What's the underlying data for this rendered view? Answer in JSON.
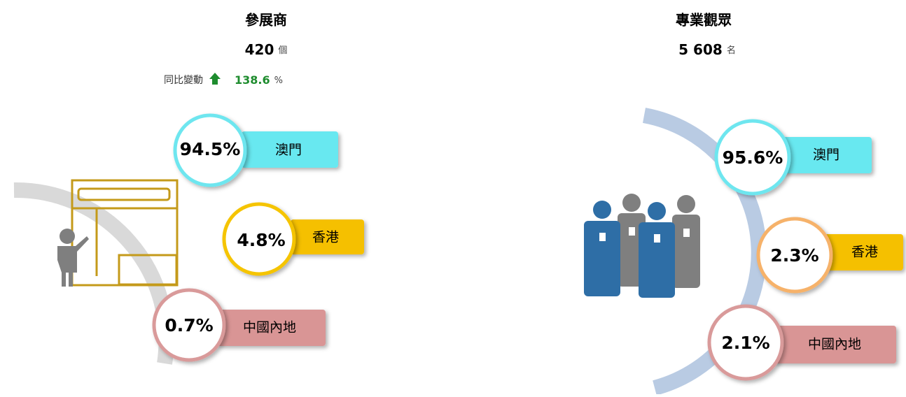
{
  "panels": [
    {
      "title": "參展商",
      "total": "420",
      "unit": "個",
      "change_label": "同比變動",
      "change": "138.6",
      "change_unit": "%",
      "items": [
        {
          "value": "94.5%",
          "label": "澳門"
        },
        {
          "value": "4.8%",
          "label": "香港"
        },
        {
          "value": "0.7%",
          "label": "中國內地"
        }
      ]
    },
    {
      "title": "專業觀眾",
      "total": "5 608",
      "unit": "名",
      "items": [
        {
          "value": "95.6%",
          "label": "澳門"
        },
        {
          "value": "2.3%",
          "label": "香港"
        },
        {
          "value": "2.1%",
          "label": "中國內地"
        }
      ]
    }
  ]
}
